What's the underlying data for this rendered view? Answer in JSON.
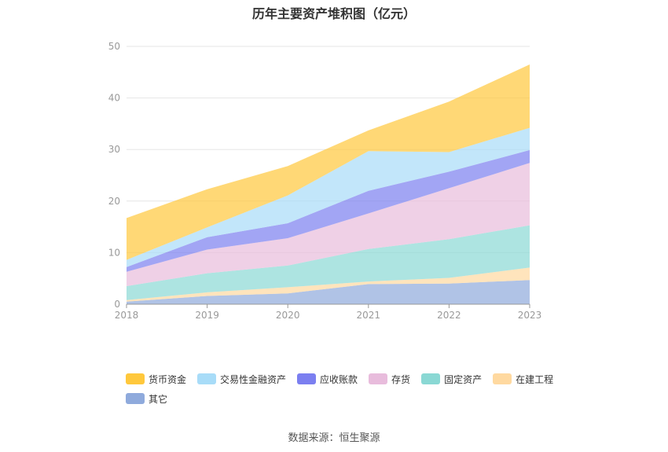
{
  "chart_data": {
    "type": "area",
    "stacked": true,
    "title": "历年主要资产堆积图（亿元）",
    "xlabel": "",
    "ylabel": "",
    "x": [
      "2018",
      "2019",
      "2020",
      "2021",
      "2022",
      "2023"
    ],
    "y_ticks": [
      "0",
      "10",
      "20",
      "30",
      "40",
      "50"
    ],
    "ylim": [
      0,
      50
    ],
    "grid": true,
    "legend_position": "bottom",
    "series": [
      {
        "name": "其它",
        "color": "#8faadc",
        "values": [
          0.5,
          1.6,
          2.1,
          3.9,
          4.0,
          4.7
        ]
      },
      {
        "name": "在建工程",
        "color": "#ffd9a0",
        "values": [
          0.3,
          0.7,
          1.2,
          0.5,
          1.1,
          2.4
        ]
      },
      {
        "name": "固定资产",
        "color": "#8ad8d4",
        "values": [
          2.7,
          3.7,
          4.2,
          6.3,
          7.5,
          8.2
        ]
      },
      {
        "name": "存货",
        "color": "#e8bcdc",
        "values": [
          2.8,
          4.6,
          5.3,
          6.9,
          9.9,
          12.1
        ]
      },
      {
        "name": "应收账款",
        "color": "#7b7ff0",
        "values": [
          0.9,
          2.4,
          2.9,
          4.4,
          3.2,
          2.5
        ]
      },
      {
        "name": "交易性金融资产",
        "color": "#a8dcf8",
        "values": [
          1.4,
          1.9,
          5.4,
          7.7,
          3.8,
          4.3
        ]
      },
      {
        "name": "货币资金",
        "color": "#ffc83c",
        "values": [
          8.1,
          7.4,
          5.7,
          4.0,
          9.8,
          12.3
        ]
      }
    ],
    "legend_order": [
      "货币资金",
      "交易性金融资产",
      "应收账款",
      "存货",
      "固定资产",
      "在建工程",
      "其它"
    ]
  },
  "source_text": "数据来源：恒生聚源"
}
